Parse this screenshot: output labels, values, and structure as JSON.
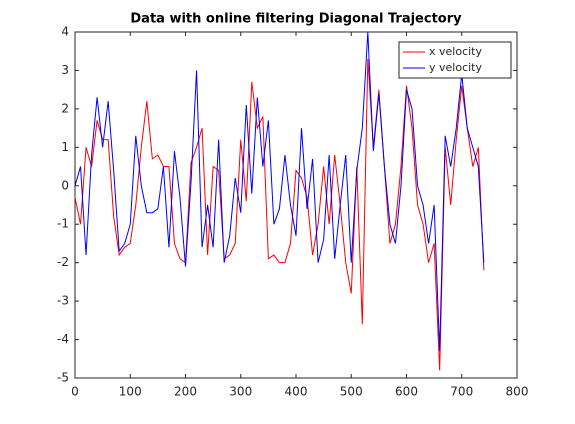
{
  "chart_data": {
    "type": "line",
    "title": "Data with online filtering Diagonal Trajectory",
    "x": [
      0,
      10,
      20,
      30,
      40,
      50,
      60,
      70,
      80,
      90,
      100,
      110,
      120,
      130,
      140,
      150,
      160,
      170,
      180,
      190,
      200,
      210,
      220,
      230,
      240,
      250,
      260,
      270,
      280,
      290,
      300,
      310,
      320,
      330,
      340,
      350,
      360,
      370,
      380,
      390,
      400,
      410,
      420,
      430,
      440,
      450,
      460,
      470,
      480,
      490,
      500,
      510,
      520,
      530,
      540,
      550,
      560,
      570,
      580,
      590,
      600,
      610,
      620,
      630,
      640,
      650,
      660,
      670,
      680,
      690,
      700,
      710,
      720,
      730,
      740
    ],
    "series": [
      {
        "name": "x velocity",
        "color": "#ff0000",
        "values": [
          -0.3,
          -1.0,
          1.0,
          0.5,
          1.7,
          1.2,
          1.2,
          -0.8,
          -1.8,
          -1.6,
          -1.5,
          -0.5,
          1.0,
          2.2,
          0.7,
          0.8,
          0.5,
          0.5,
          -1.5,
          -1.9,
          -2.0,
          0.6,
          1.0,
          1.5,
          -1.8,
          0.5,
          0.4,
          -1.9,
          -1.8,
          -1.5,
          1.2,
          -0.4,
          2.7,
          1.5,
          1.8,
          -1.9,
          -1.8,
          -2.0,
          -2.0,
          -1.5,
          0.4,
          0.2,
          -0.3,
          -1.8,
          -1.0,
          0.5,
          -1.0,
          0.8,
          -0.5,
          -2.0,
          -2.8,
          0.5,
          -3.6,
          3.3,
          1.0,
          2.5,
          0.5,
          -1.5,
          -1.0,
          0.5,
          2.6,
          1.5,
          -0.5,
          -1.0,
          -2.0,
          -1.5,
          -4.8,
          1.0,
          -0.5,
          1.2,
          2.6,
          1.5,
          0.5,
          1.0,
          -2.2
        ]
      },
      {
        "name": "y velocity",
        "color": "#0000ff",
        "values": [
          0.0,
          0.5,
          -1.8,
          0.8,
          2.3,
          1.0,
          2.2,
          0.4,
          -1.7,
          -1.5,
          -1.0,
          1.3,
          0.0,
          -0.7,
          -0.7,
          -0.6,
          0.5,
          -1.6,
          0.9,
          -0.3,
          -2.1,
          0.1,
          3.0,
          -1.6,
          -0.5,
          -1.6,
          1.2,
          -2.0,
          -1.3,
          0.2,
          -0.7,
          2.1,
          -0.2,
          2.3,
          0.5,
          1.7,
          -1.0,
          -0.6,
          0.8,
          -0.5,
          -1.3,
          1.5,
          -0.6,
          0.7,
          -2.0,
          -1.4,
          0.8,
          -1.9,
          -0.5,
          0.8,
          -2.0,
          0.4,
          1.5,
          4.0,
          0.9,
          2.4,
          0.5,
          -1.0,
          -1.5,
          0.0,
          2.5,
          2.0,
          0.0,
          -0.5,
          -1.5,
          -0.5,
          -4.3,
          1.3,
          0.5,
          1.5,
          2.9,
          1.5,
          1.0,
          0.5,
          -2.0
        ]
      }
    ],
    "xlim": [
      0,
      800
    ],
    "xticks": [
      0,
      100,
      200,
      300,
      400,
      500,
      600,
      700,
      800
    ],
    "ylim": [
      -5,
      4
    ],
    "yticks": [
      -5,
      -4,
      -3,
      -2,
      -1,
      0,
      1,
      2,
      3,
      4
    ],
    "legend": "northeast",
    "grid": false
  }
}
